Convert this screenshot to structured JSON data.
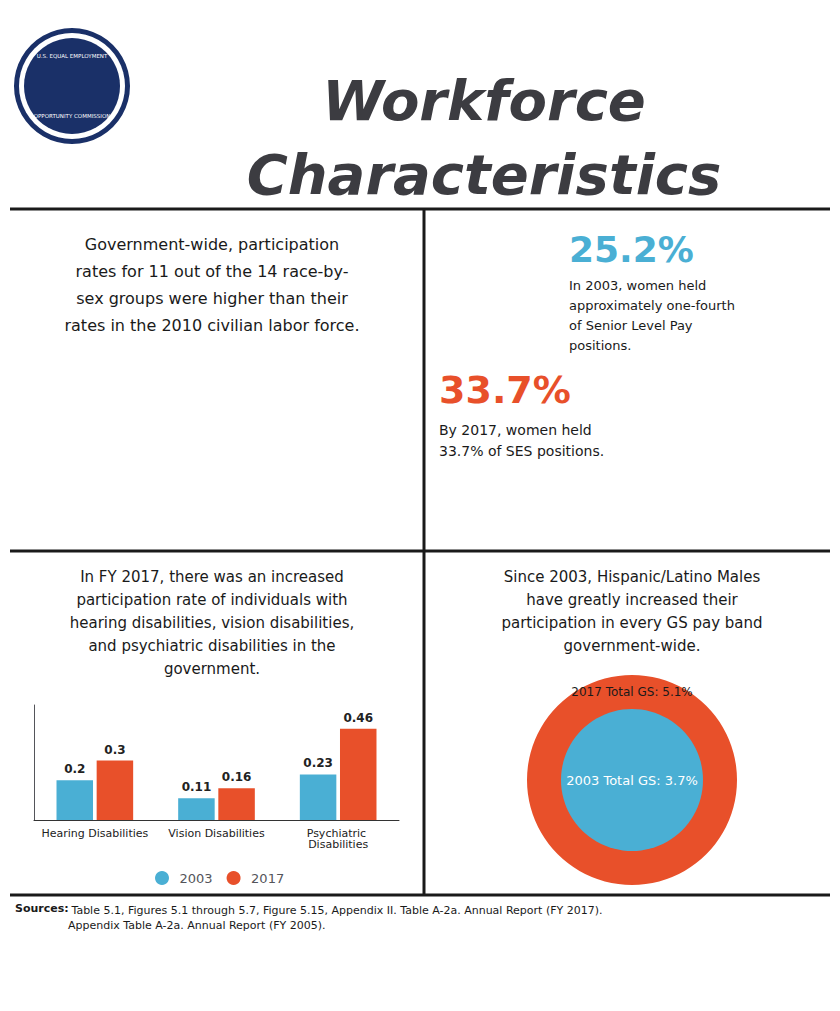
{
  "chart_data": {
    "type": "bar",
    "title": "Workforce\nCharacteristics",
    "subtitle": "In FY 2017, there was an increased\nparticipation rate of individuals with\nhearing disabilities, vision disabilities,\nand psychiatric disabilities in the\ngovernment.",
    "categories": [
      "Hearing Disabilities",
      "Vision Disabilities",
      "Psychiatric Disabilities"
    ],
    "series": [
      {
        "name": "2003",
        "color": "#4AAFD4",
        "values": [
          0.2,
          0.11,
          0.23
        ]
      },
      {
        "name": "2017",
        "color": "#E8502A",
        "values": [
          0.3,
          0.16,
          0.46
        ]
      }
    ],
    "ylim": [
      0,
      0.58
    ],
    "grid": false,
    "legend": "bottom",
    "data_labels": true,
    "tick_labels": "x",
    "annotations": [
      {
        "text": "Government-wide, participation\nrates for 11 out of the 14 race-by-\nsex groups were higher than their\nrates in the 2010 civilian labor force."
      },
      {
        "text": "25.2%",
        "color": "#4AAFD4"
      },
      {
        "text": "In 2003, women held\napproximately one-fourth\nof Senior Level Pay\npositions."
      },
      {
        "text": "33.7%",
        "color": "#E8502A"
      },
      {
        "text": "By 2017, women held\n33.7% of SES positions."
      },
      {
        "text": "Since 2003, Hispanic/Latino Males\nhave greatly increased their\nparticipation in every GS pay band\ngovernment-wide."
      },
      {
        "text": "2017 Total GS: 5.1%",
        "color": "#E8502A"
      },
      {
        "text": "2003 Total GS: 3.7%",
        "color": "#4AAFD4"
      },
      {
        "text": "Sources:"
      },
      {
        "text": " Table 5.1, Figures 5.1 through 5.7, Figure 5.15, Appendix II. Table A-2a. Annual Report (FY 2017).\nAppendix Table A-2a. Annual Report (FY 2005)."
      },
      {
        "text": "U.S. EQUAL EMPLOYMENT"
      },
      {
        "text": "OPPORTUNITY COMMISSION"
      }
    ]
  }
}
